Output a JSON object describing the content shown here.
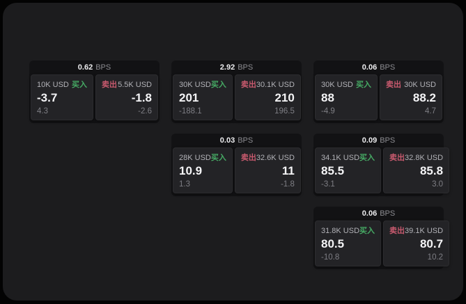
{
  "labels": {
    "bps": "BPS",
    "buy": "买入",
    "sell": "卖出"
  },
  "colors": {
    "background": "#030303",
    "panel": "#1c1c1e",
    "card": "#121214",
    "subpanel": "#232326",
    "buy_accent": "#46aa64",
    "sell_accent": "#c85a6e"
  },
  "cards": [
    {
      "spread": "0.62",
      "buy": {
        "amount": "10K USD",
        "price": "-3.7",
        "delta": "4.3"
      },
      "sell": {
        "amount": "5.5K USD",
        "price": "-1.8",
        "delta": "-2.6"
      }
    },
    {
      "spread": "2.92",
      "buy": {
        "amount": "30K USD",
        "price": "201",
        "delta": "-188.1"
      },
      "sell": {
        "amount": "30.1K USD",
        "price": "210",
        "delta": "196.5"
      }
    },
    {
      "spread": "0.06",
      "buy": {
        "amount": "30K USD",
        "price": "88",
        "delta": "-4.9"
      },
      "sell": {
        "amount": "30K USD",
        "price": "88.2",
        "delta": "4.7"
      }
    },
    {
      "spread": "0.03",
      "buy": {
        "amount": "28K USD",
        "price": "10.9",
        "delta": "1.3"
      },
      "sell": {
        "amount": "32.6K USD",
        "price": "11",
        "delta": "-1.8"
      }
    },
    {
      "spread": "0.09",
      "buy": {
        "amount": "34.1K USD",
        "price": "85.5",
        "delta": "-3.1"
      },
      "sell": {
        "amount": "32.8K USD",
        "price": "85.8",
        "delta": "3.0"
      }
    },
    {
      "spread": "0.06",
      "buy": {
        "amount": "31.8K USD",
        "price": "80.5",
        "delta": "-10.8"
      },
      "sell": {
        "amount": "39.1K USD",
        "price": "80.7",
        "delta": "10.2"
      }
    }
  ]
}
